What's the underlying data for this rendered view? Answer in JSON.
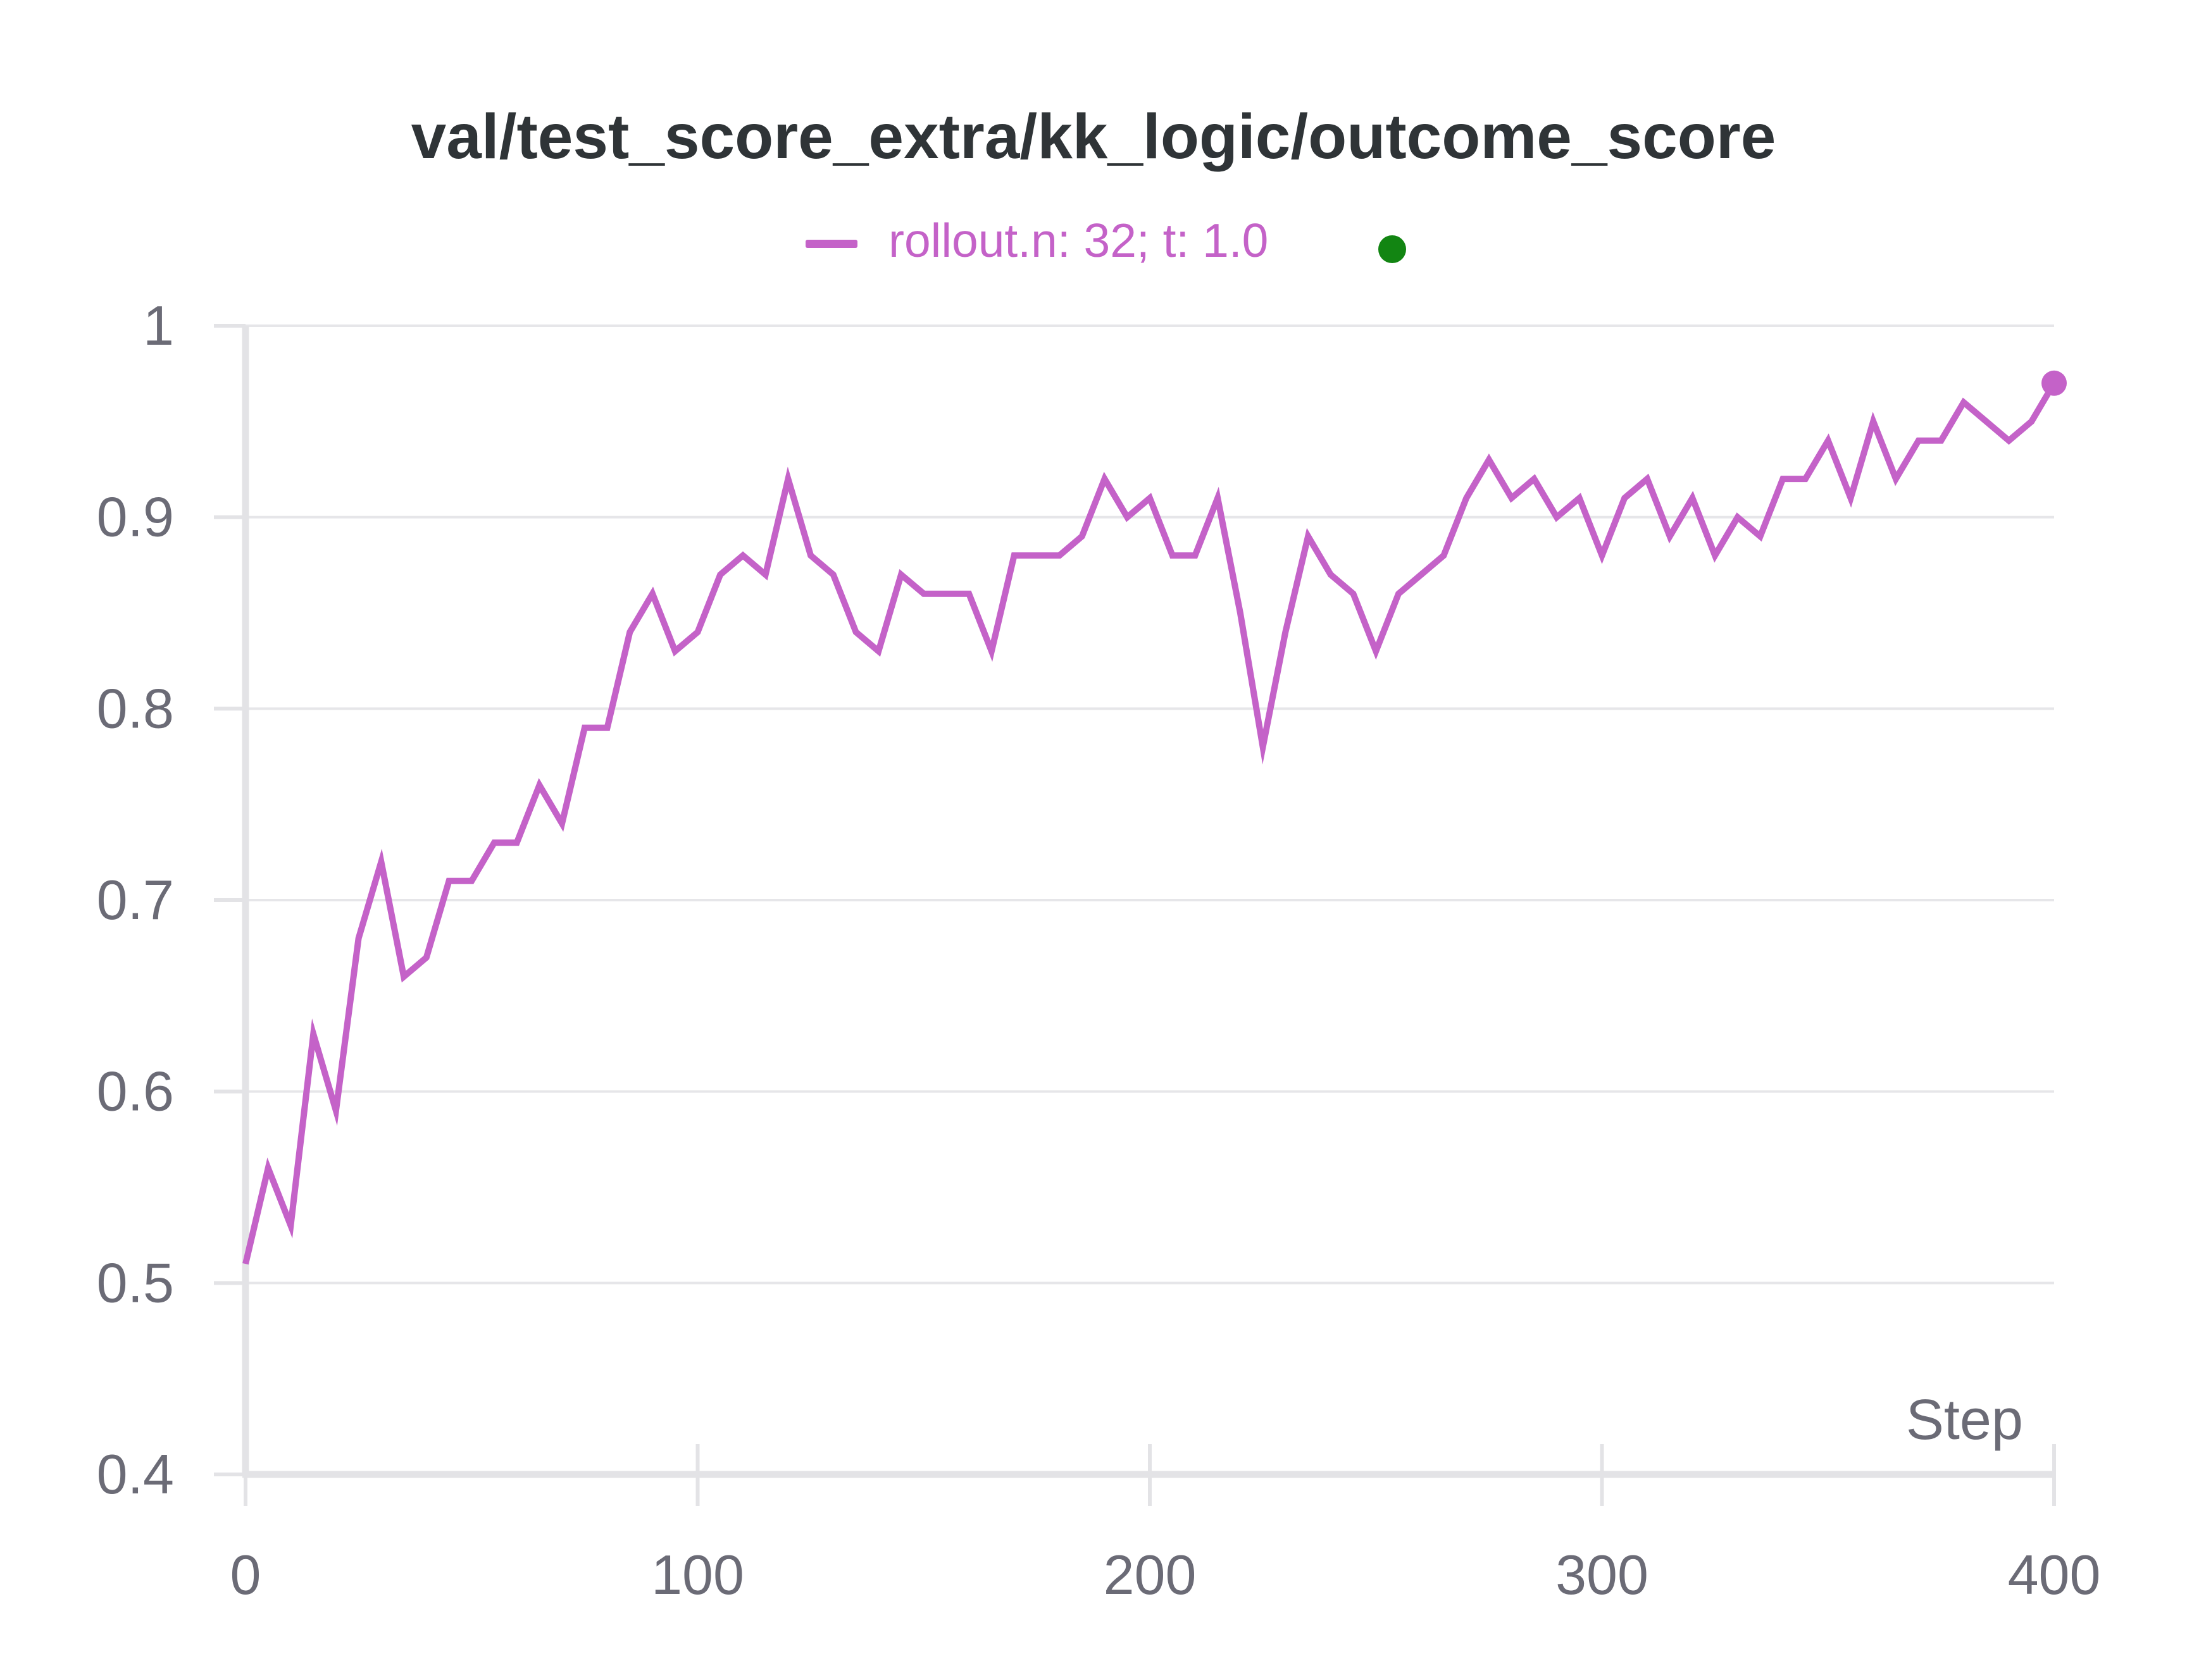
{
  "chart_data": {
    "type": "line",
    "title": "val/test_score_extra/kk_logic/outcome_score",
    "xlabel": "Step",
    "ylabel": "",
    "xlim": [
      0,
      400
    ],
    "ylim": [
      0.4,
      1
    ],
    "x_ticks": [
      "0",
      "100",
      "200",
      "300",
      "400"
    ],
    "y_ticks": [
      "0.4",
      "0.5",
      "0.6",
      "0.7",
      "0.8",
      "0.9",
      "1"
    ],
    "grid": "horizontal",
    "legend_position": "top-center",
    "series": [
      {
        "name": "rollout.n: 32; t: 1.0",
        "color": "#c462c8",
        "status_color": "#128512",
        "x": [
          0,
          5,
          10,
          15,
          20,
          25,
          30,
          35,
          40,
          45,
          50,
          55,
          60,
          65,
          70,
          75,
          80,
          85,
          90,
          95,
          100,
          105,
          110,
          115,
          120,
          125,
          130,
          135,
          140,
          145,
          150,
          155,
          160,
          165,
          170,
          175,
          180,
          185,
          190,
          195,
          200,
          205,
          210,
          215,
          220,
          225,
          230,
          235,
          240,
          245,
          250,
          255,
          260,
          265,
          270,
          275,
          280,
          285,
          290,
          295,
          300,
          305,
          310,
          315,
          320,
          325,
          330,
          335,
          340,
          345,
          350,
          355,
          360,
          365,
          370,
          375,
          380,
          385,
          390,
          395,
          400
        ],
        "y": [
          0.51,
          0.56,
          0.53,
          0.63,
          0.59,
          0.68,
          0.72,
          0.66,
          0.67,
          0.71,
          0.71,
          0.73,
          0.73,
          0.76,
          0.74,
          0.79,
          0.79,
          0.84,
          0.86,
          0.83,
          0.84,
          0.87,
          0.88,
          0.87,
          0.92,
          0.88,
          0.87,
          0.84,
          0.83,
          0.87,
          0.86,
          0.86,
          0.86,
          0.83,
          0.88,
          0.88,
          0.88,
          0.89,
          0.92,
          0.9,
          0.91,
          0.88,
          0.88,
          0.91,
          0.85,
          0.78,
          0.84,
          0.89,
          0.87,
          0.86,
          0.83,
          0.86,
          0.87,
          0.88,
          0.91,
          0.93,
          0.91,
          0.92,
          0.9,
          0.91,
          0.88,
          0.91,
          0.92,
          0.89,
          0.91,
          0.88,
          0.9,
          0.89,
          0.92,
          0.92,
          0.94,
          0.91,
          0.95,
          0.92,
          0.94,
          0.94,
          0.96,
          0.95,
          0.94,
          0.95,
          0.97
        ]
      }
    ]
  }
}
